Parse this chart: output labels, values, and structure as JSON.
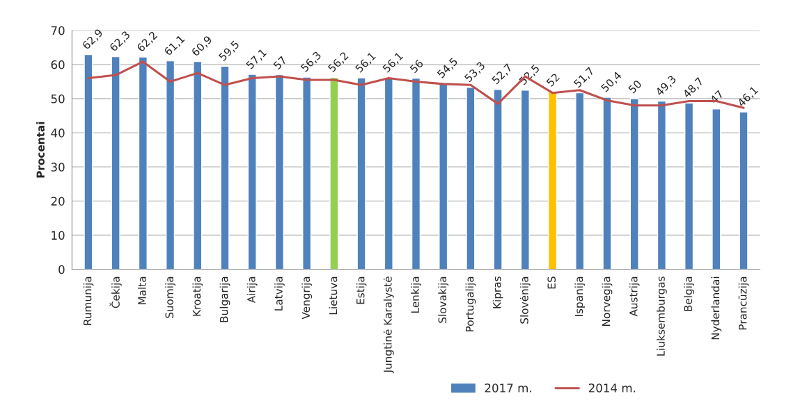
{
  "chart_data": {
    "type": "bar",
    "ylabel": "Procentai",
    "categories": [
      "Rumunija",
      "Čekija",
      "Malta",
      "Suomija",
      "Kroatija",
      "Bulgarija",
      "Airija",
      "Latvija",
      "Vengrija",
      "Lietuva",
      "Estija",
      "Jungtinė Karalystė",
      "Lenkija",
      "Slovakija",
      "Portugalija",
      "Kipras",
      "Slovėnija",
      "ES",
      "Ispanija",
      "Norvegija",
      "Austrija",
      "Liuksemburgas",
      "Belgija",
      "Nyderlandai",
      "Prancūzija"
    ],
    "series": [
      {
        "name": "2017 m.",
        "color": "#4f81bd",
        "colors": [
          "#4f81bd",
          "#4f81bd",
          "#4f81bd",
          "#4f81bd",
          "#4f81bd",
          "#4f81bd",
          "#4f81bd",
          "#4f81bd",
          "#4f81bd",
          "#92d050",
          "#4f81bd",
          "#4f81bd",
          "#4f81bd",
          "#4f81bd",
          "#4f81bd",
          "#4f81bd",
          "#4f81bd",
          "#ffc000",
          "#4f81bd",
          "#4f81bd",
          "#4f81bd",
          "#4f81bd",
          "#4f81bd",
          "#4f81bd",
          "#4f81bd"
        ],
        "values": [
          62.9,
          62.3,
          62.2,
          61.1,
          60.9,
          59.5,
          57.1,
          57,
          56.3,
          56.2,
          56.1,
          56.1,
          56,
          54.5,
          53.3,
          52.7,
          52.5,
          52,
          51.7,
          50.4,
          50,
          49.3,
          48.7,
          47,
          46.1
        ],
        "value_labels": [
          "62,9",
          "62,3",
          "62,2",
          "61,1",
          "60,9",
          "59,5",
          "57,1",
          "57",
          "56,3",
          "56,2",
          "56,1",
          "56,1",
          "56",
          "54,5",
          "53,3",
          "52,7",
          "52,5",
          "52",
          "51,7",
          "50,4",
          "50",
          "49,3",
          "48,7",
          "47",
          "46,1"
        ]
      },
      {
        "name": "2014 m.",
        "type": "line",
        "color": "#c0504d",
        "values": [
          56,
          56.9,
          60.8,
          55,
          57.5,
          54,
          56,
          56.5,
          55.5,
          55.5,
          54,
          56,
          55,
          54.3,
          54,
          48.5,
          56.5,
          51.7,
          52.5,
          49.5,
          48,
          48,
          49.3,
          49.3,
          47.3
        ]
      }
    ],
    "ylim": [
      0,
      70
    ],
    "yticks": [
      0,
      10,
      20,
      30,
      40,
      50,
      60,
      70
    ],
    "grid": "y",
    "legend": "bottom",
    "marker": "none",
    "line_style": "solid"
  }
}
